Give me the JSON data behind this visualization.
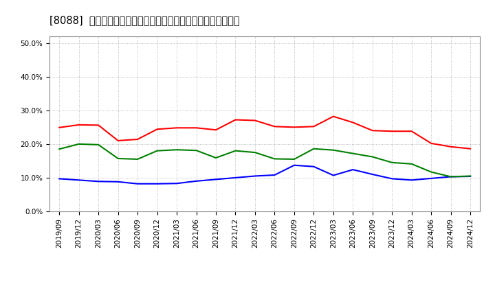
{
  "title": "[8088]  売上債権、在庫、買入債務の総資産に対する比率の推移",
  "xlabel": "",
  "ylabel": "",
  "ylim": [
    0.0,
    0.52
  ],
  "yticks": [
    0.0,
    0.1,
    0.2,
    0.3,
    0.4,
    0.5
  ],
  "ytick_labels": [
    "0.0%",
    "10.0%",
    "20.0%",
    "30.0%",
    "40.0%",
    "50.0%"
  ],
  "x_labels": [
    "2019/09",
    "2019/12",
    "2020/03",
    "2020/06",
    "2020/09",
    "2020/12",
    "2021/03",
    "2021/06",
    "2021/09",
    "2021/12",
    "2022/03",
    "2022/06",
    "2022/09",
    "2022/12",
    "2023/03",
    "2023/06",
    "2023/09",
    "2023/12",
    "2024/03",
    "2024/06",
    "2024/09",
    "2024/12"
  ],
  "series_order": [
    "売上債権",
    "在庫",
    "買入債務"
  ],
  "series": {
    "売上債権": {
      "color": "#ff0000",
      "values": [
        0.249,
        0.257,
        0.256,
        0.21,
        0.214,
        0.244,
        0.248,
        0.248,
        0.242,
        0.272,
        0.27,
        0.252,
        0.25,
        0.252,
        0.282,
        0.264,
        0.24,
        0.238,
        0.238,
        0.202,
        0.192,
        0.186
      ]
    },
    "在庫": {
      "color": "#0000ff",
      "values": [
        0.097,
        0.093,
        0.089,
        0.088,
        0.082,
        0.082,
        0.083,
        0.09,
        0.095,
        0.1,
        0.105,
        0.108,
        0.137,
        0.133,
        0.107,
        0.124,
        0.11,
        0.097,
        0.093,
        0.098,
        0.103,
        0.104
      ]
    },
    "買入債務": {
      "color": "#008000",
      "values": [
        0.185,
        0.2,
        0.198,
        0.157,
        0.155,
        0.18,
        0.183,
        0.181,
        0.159,
        0.18,
        0.175,
        0.156,
        0.155,
        0.186,
        0.182,
        0.172,
        0.162,
        0.145,
        0.141,
        0.117,
        0.103,
        0.105
      ]
    }
  },
  "background_color": "#ffffff",
  "plot_bg_color": "#ffffff",
  "grid_color": "#aaaaaa",
  "title_fontsize": 10.5,
  "tick_fontsize": 7.5,
  "legend_fontsize": 9,
  "line_width": 1.5
}
